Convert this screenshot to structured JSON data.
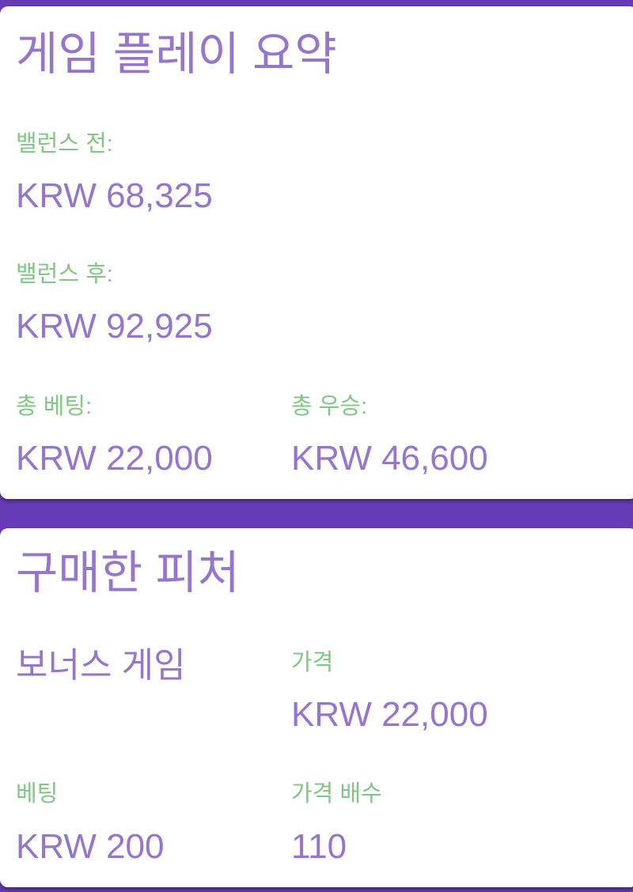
{
  "summary": {
    "title": "게임 플레이 요약",
    "balance_before_label": "밸런스 전:",
    "balance_before": "KRW 68,325",
    "balance_after_label": "밸런스 후:",
    "balance_after": "KRW 92,925",
    "total_bet_label": "총 베팅:",
    "total_bet": "KRW 22,000",
    "total_win_label": "총 우승:",
    "total_win": "KRW 46,600"
  },
  "features": {
    "title": "구매한 피처",
    "feature_name": "보너스 게임",
    "price_label": "가격",
    "price": "KRW 22,000",
    "bet_label": "베팅",
    "bet": "KRW 200",
    "multiplier_label": "가격 배수",
    "multiplier": "110"
  },
  "colors": {
    "background": "#673ab7",
    "primary_text": "#9575cd",
    "label_text": "#81c784"
  }
}
